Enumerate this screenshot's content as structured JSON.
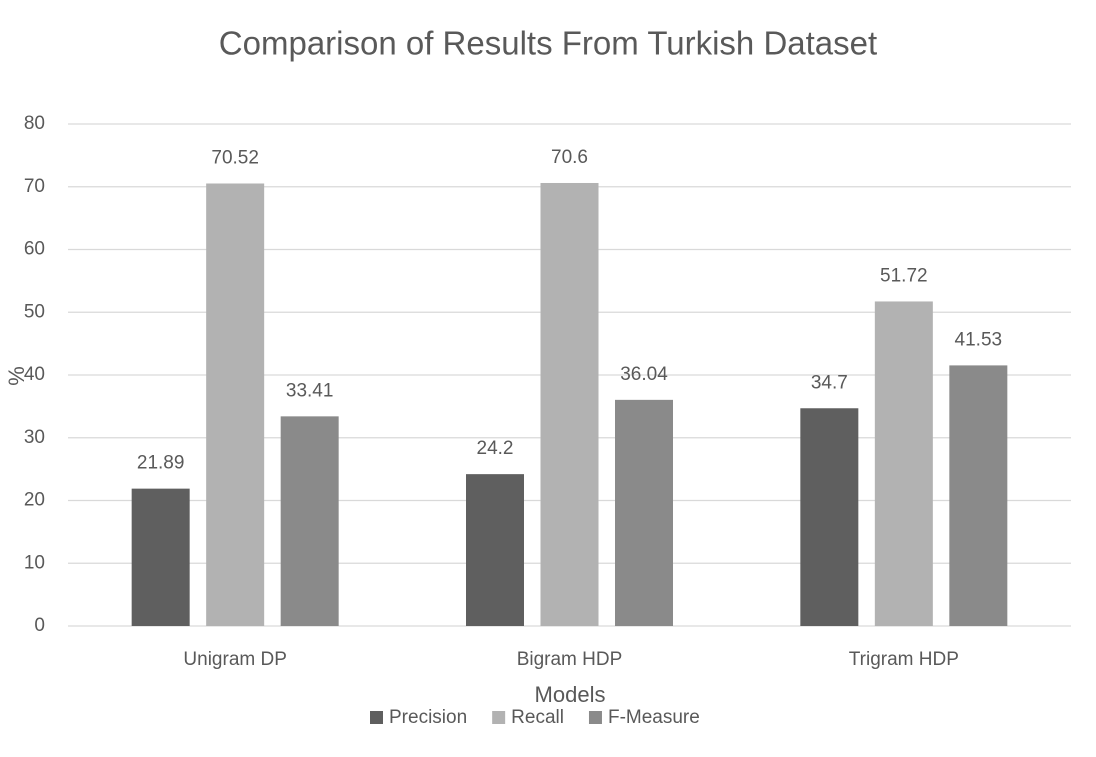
{
  "chart_data": {
    "type": "bar",
    "title": "Comparison of Results From Turkish Dataset",
    "x_label": "Models",
    "y_label": "%",
    "categories": [
      "Unigram DP",
      "Bigram HDP",
      "Trigram HDP"
    ],
    "series": [
      {
        "name": "Precision",
        "color": "#5f5f5f",
        "values": [
          21.89,
          24.2,
          34.7
        ]
      },
      {
        "name": "Recall",
        "color": "#b2b2b2",
        "values": [
          70.52,
          70.6,
          51.72
        ]
      },
      {
        "name": "F-Measure",
        "color": "#8a8a8a",
        "values": [
          33.41,
          36.04,
          41.53
        ]
      }
    ],
    "ylim": [
      0,
      80
    ],
    "yticks": [
      0,
      10,
      20,
      30,
      40,
      50,
      60,
      70,
      80
    ],
    "grid": true,
    "legend": "bottom"
  }
}
